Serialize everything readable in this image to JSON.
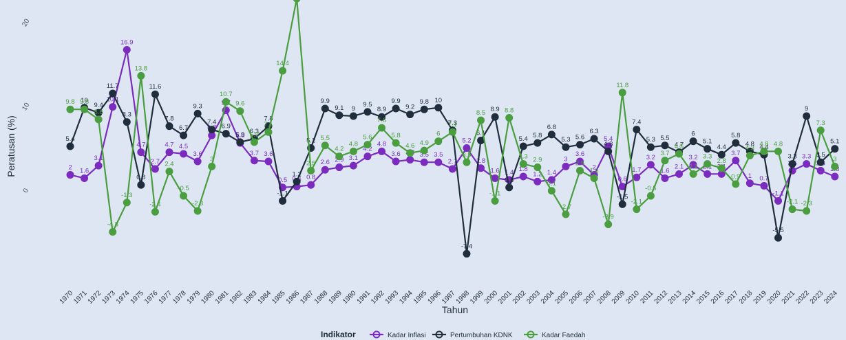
{
  "chart_data": {
    "type": "line",
    "xlabel": "Tahun",
    "ylabel": "Peratusan (%)",
    "ylim": [
      -8,
      24
    ],
    "yticks": [
      0,
      10,
      20
    ],
    "ytick_labels": [
      "0",
      "10",
      "20"
    ],
    "legend_title": "Indikator",
    "legend_position": "bottom-center",
    "x": [
      1970,
      1971,
      1972,
      1973,
      1974,
      1975,
      1976,
      1977,
      1978,
      1979,
      1980,
      1981,
      1982,
      1983,
      1984,
      1985,
      1986,
      1987,
      1988,
      1989,
      1990,
      1991,
      1992,
      1993,
      1994,
      1995,
      1996,
      1997,
      1998,
      1999,
      2000,
      2001,
      2002,
      2003,
      2004,
      2005,
      2006,
      2007,
      2008,
      2009,
      2010,
      2011,
      2012,
      2013,
      2014,
      2015,
      2016,
      2017,
      2018,
      2019,
      2020,
      2021,
      2022,
      2023,
      2024
    ],
    "series": [
      {
        "name": "Kadar Inflasi",
        "color": "#7b2cbf",
        "values": [
          2,
          1.6,
          3.1,
          10.1,
          16.9,
          4.7,
          2.7,
          4.7,
          4.5,
          3.6,
          6.7,
          9.7,
          5.8,
          3.7,
          3.6,
          0.5,
          0.6,
          0.8,
          2.6,
          2.9,
          3.1,
          4.2,
          4.8,
          3.6,
          3.8,
          3.5,
          3.5,
          2.7,
          5.2,
          2.8,
          1.6,
          1.4,
          1.8,
          1.2,
          1.4,
          3,
          3.6,
          2,
          5.4,
          0.6,
          1.7,
          3.2,
          1.6,
          2.1,
          3.2,
          2.1,
          2.1,
          3.7,
          1,
          0.7,
          -1.1,
          2.5,
          3.3,
          2.5,
          1.8
        ]
      },
      {
        "name": "Pertumbuhan KDNK",
        "color": "#1f2d3d",
        "values": [
          5.4,
          10,
          9.4,
          11.7,
          8.3,
          0.8,
          11.6,
          7.8,
          6.7,
          9.3,
          7.4,
          6.9,
          5.9,
          6.3,
          7.8,
          -1.1,
          1.2,
          5.2,
          9.9,
          9.1,
          9,
          9.5,
          8.9,
          9.9,
          9.2,
          9.8,
          10,
          7.3,
          -7.4,
          6.1,
          8.9,
          0.5,
          5.4,
          5.8,
          6.8,
          5.3,
          5.6,
          6.3,
          4.8,
          -1.5,
          7.4,
          5.3,
          5.5,
          4.7,
          6,
          5.1,
          4.4,
          5.8,
          4.8,
          4.4,
          -5.5,
          3.3,
          9,
          3.5,
          5.1
        ]
      },
      {
        "name": "Kadar Faedah",
        "color": "#4a9e3f",
        "values": [
          9.8,
          9.8,
          8.6,
          -4.8,
          -1.3,
          13.8,
          -2.4,
          2.4,
          -0.5,
          -2.3,
          3,
          10.7,
          9.6,
          5.9,
          7.1,
          14.4,
          23,
          2.5,
          5.5,
          4.2,
          4.8,
          5.6,
          7.6,
          5.8,
          4.6,
          4.9,
          6,
          7.1,
          3.5,
          8.5,
          -1.1,
          8.8,
          3.3,
          2.9,
          0.1,
          -2.7,
          2.5,
          1.6,
          -3.9,
          11.8,
          -2.1,
          -0.5,
          3.7,
          4.5,
          2.1,
          3.3,
          2.8,
          0.9,
          4.3,
          4.8,
          4.8,
          -2.1,
          -2.3,
          7.3,
          3
        ]
      }
    ]
  }
}
